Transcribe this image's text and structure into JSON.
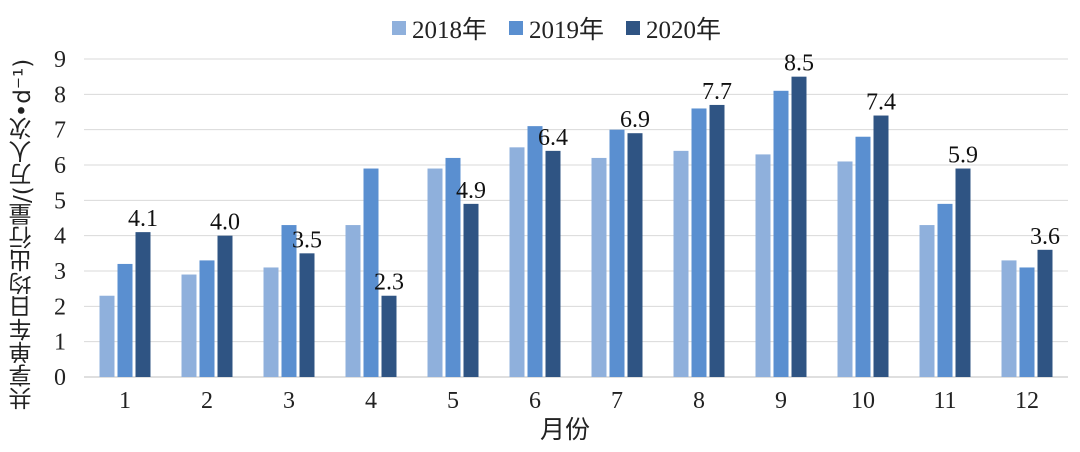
{
  "chart_data": {
    "type": "bar",
    "categories": [
      "1",
      "2",
      "3",
      "4",
      "5",
      "6",
      "7",
      "8",
      "9",
      "10",
      "11",
      "12"
    ],
    "series": [
      {
        "name": "2018年",
        "color": "#8fb0dc",
        "values": [
          2.3,
          2.9,
          3.1,
          4.3,
          5.9,
          6.5,
          6.2,
          6.4,
          6.3,
          6.1,
          4.3,
          3.3
        ]
      },
      {
        "name": "2019年",
        "color": "#5a8fd0",
        "values": [
          3.2,
          3.3,
          4.3,
          5.9,
          6.2,
          7.1,
          7.0,
          7.6,
          8.1,
          6.8,
          4.9,
          3.1
        ]
      },
      {
        "name": "2020年",
        "color": "#2f5483",
        "values": [
          4.1,
          4.0,
          3.5,
          2.3,
          4.9,
          6.4,
          6.9,
          7.7,
          8.5,
          7.4,
          5.9,
          3.6
        ]
      }
    ],
    "data_labels": [
      "4.1",
      "4.0",
      "3.5",
      "2.3",
      "4.9",
      "6.4",
      "6.9",
      "7.7",
      "8.5",
      "7.4",
      "5.9",
      "3.6"
    ],
    "ylim": [
      0,
      9
    ],
    "yticks": [
      "0",
      "1",
      "2",
      "3",
      "4",
      "5",
      "6",
      "7",
      "8",
      "9"
    ],
    "xlabel": "月份",
    "ylabel": "共享单车日均出行量/(万人次•d⁻¹)",
    "grid": "horizontal",
    "legend": "top-center"
  }
}
